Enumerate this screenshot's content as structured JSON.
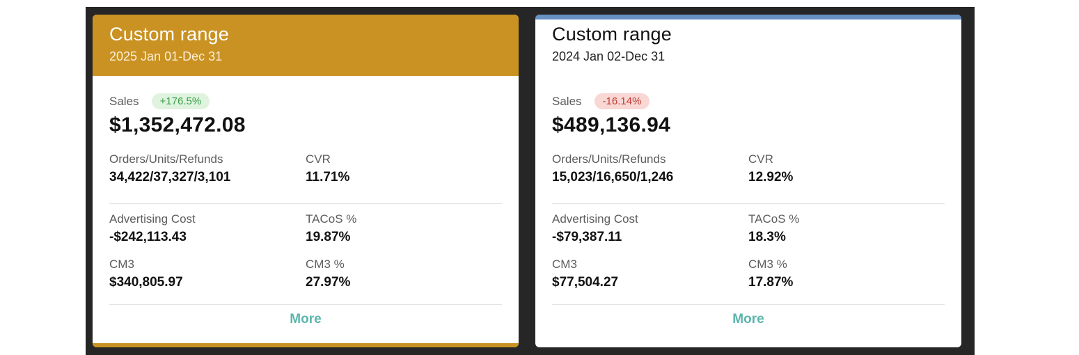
{
  "cards": [
    {
      "title": "Custom range",
      "date_range": "2025 Jan 01-Dec 31",
      "sales_label": "Sales",
      "sales_change": "+176.5%",
      "sales_value": "$1,352,472.08",
      "metrics": {
        "orders_label": "Orders/Units/Refunds",
        "orders_value": "34,422/37,327/3,101",
        "cvr_label": "CVR",
        "cvr_value": "11.71%",
        "adcost_label": "Advertising Cost",
        "adcost_value": "-$242,113.43",
        "tacos_label": "TACoS %",
        "tacos_value": "19.87%",
        "cm3_label": "CM3",
        "cm3_value": "$340,805.97",
        "cm3pct_label": "CM3 %",
        "cm3pct_value": "27.97%"
      },
      "more_label": "More"
    },
    {
      "title": "Custom range",
      "date_range": "2024 Jan 02-Dec 31",
      "sales_label": "Sales",
      "sales_change": "-16.14%",
      "sales_value": "$489,136.94",
      "metrics": {
        "orders_label": "Orders/Units/Refunds",
        "orders_value": "15,023/16,650/1,246",
        "cvr_label": "CVR",
        "cvr_value": "12.92%",
        "adcost_label": "Advertising Cost",
        "adcost_value": "-$79,387.11",
        "tacos_label": "TACoS %",
        "tacos_value": "18.3%",
        "cm3_label": "CM3",
        "cm3_value": "$77,504.27",
        "cm3pct_label": "CM3 %",
        "cm3pct_value": "17.87%"
      },
      "more_label": "More"
    }
  ],
  "colors": {
    "card1_header": "#c99223",
    "card2_accent": "#6691c2",
    "positive_badge_bg": "#dff3df",
    "positive_badge_text": "#3aa04a",
    "negative_badge_bg": "#f8d7d4",
    "negative_badge_text": "#c23b33",
    "link": "#5bb5ac",
    "frame_bg": "#262626"
  }
}
